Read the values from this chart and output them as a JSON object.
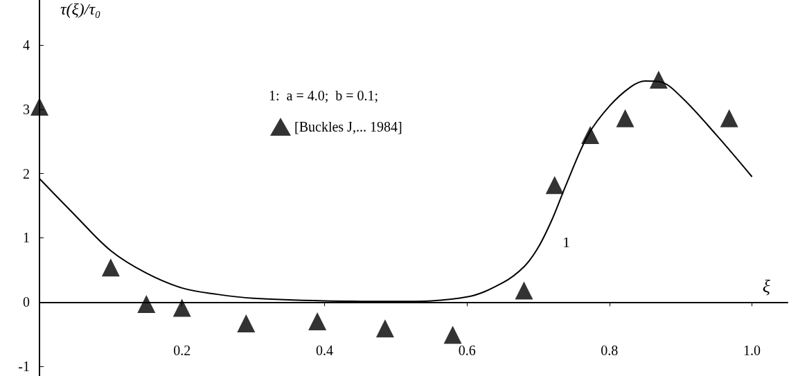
{
  "chart_data": {
    "type": "line",
    "xlabel": "ξ",
    "ylabel": "τ(ξ)/τ₀",
    "annotations": [
      "1:  a = 4.0;  b = 0.1;",
      "1"
    ],
    "xlim": [
      0,
      1.05
    ],
    "ylim": [
      -1.15,
      4.7
    ],
    "xticks": [
      0.2,
      0.4,
      0.6,
      0.8,
      {
        "value": 1,
        "label": "1.0"
      }
    ],
    "yticks": [
      -1,
      0,
      1,
      2,
      3,
      4
    ],
    "legend": "top left",
    "series": [
      {
        "color": "#000000",
        "marker": "none",
        "x": [
          0,
          0.05,
          0.1,
          0.15,
          0.2,
          0.25,
          0.3,
          0.4,
          0.5,
          0.6,
          0.65,
          0.68,
          0.7,
          0.72,
          0.74,
          0.77,
          0.8,
          0.83,
          0.85,
          0.87,
          0.9,
          0.95,
          1.0
        ],
        "values": [
          1.92,
          1.35,
          0.8,
          0.45,
          0.22,
          0.12,
          0.06,
          0.02,
          0.01,
          0.08,
          0.3,
          0.55,
          0.85,
          1.3,
          1.85,
          2.6,
          3.05,
          3.35,
          3.44,
          3.43,
          3.2,
          2.6,
          1.95
        ]
      },
      {
        "type": "scatter",
        "name": "[Buckles J,... 1984]",
        "color": "#000000",
        "marker": "triangle",
        "x": [
          0,
          0.1,
          0.15,
          0.2,
          0.29,
          0.39,
          0.485,
          0.58,
          0.68,
          0.723,
          0.773,
          0.822,
          0.869,
          0.968
        ],
        "values": [
          3.04,
          0.54,
          -0.03,
          -0.09,
          -0.33,
          -0.3,
          -0.41,
          -0.51,
          0.18,
          1.82,
          2.6,
          2.86,
          3.46,
          2.86
        ]
      }
    ]
  }
}
